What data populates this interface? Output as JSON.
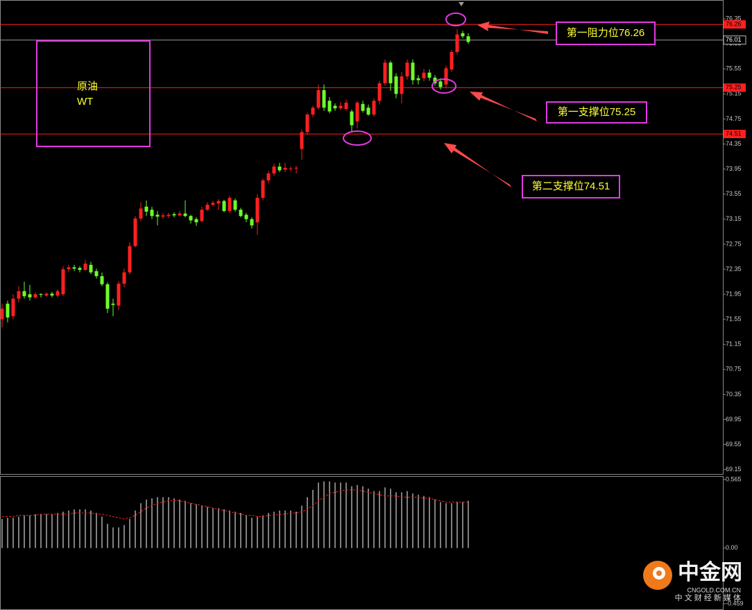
{
  "chart_data": [
    {
      "type": "candlestick",
      "ylim": [
        69.08,
        76.65
      ],
      "yticks": [
        76.35,
        75.95,
        75.55,
        75.15,
        74.75,
        74.35,
        73.95,
        73.55,
        73.15,
        72.75,
        72.35,
        71.95,
        71.55,
        71.15,
        70.75,
        70.35,
        69.95,
        69.55,
        69.15
      ],
      "up_color": "#ff2020",
      "down_color": "#6dff2a",
      "open": [
        71.55,
        71.8,
        71.6,
        71.88,
        72.0,
        71.95,
        71.9,
        71.95,
        71.93,
        71.96,
        71.93,
        71.95,
        72.35,
        72.38,
        72.37,
        72.34,
        72.42,
        72.32,
        72.24,
        72.11,
        71.8,
        71.77,
        72.12,
        72.3,
        72.72,
        73.16,
        73.35,
        73.3,
        73.22,
        73.19,
        73.2,
        73.23,
        73.21,
        73.24,
        73.2,
        73.15,
        73.12,
        73.3,
        73.38,
        73.4,
        73.44,
        73.28,
        73.45,
        73.3,
        73.22,
        73.15,
        73.1,
        73.49,
        73.77,
        73.88,
        73.99,
        73.94,
        73.95,
        73.96,
        74.27,
        74.54,
        74.82,
        74.93,
        75.21,
        75.04,
        74.96,
        74.92,
        74.91,
        74.87,
        74.71,
        74.99,
        74.93,
        74.82,
        75.04,
        75.32,
        75.65,
        75.43,
        75.15,
        75.43,
        75.65,
        75.4,
        75.4,
        75.49,
        75.41,
        75.35,
        75.3,
        75.54,
        75.82,
        76.12,
        76.07
      ],
      "high": [
        71.8,
        71.85,
        71.95,
        72.08,
        72.15,
        72.1,
        71.98,
        71.97,
        71.98,
        71.99,
        72.03,
        72.4,
        72.42,
        72.42,
        72.4,
        72.5,
        72.47,
        72.36,
        72.3,
        72.14,
        71.88,
        72.16,
        72.36,
        72.78,
        73.2,
        73.42,
        73.45,
        73.35,
        73.28,
        73.25,
        73.25,
        73.26,
        73.28,
        73.45,
        73.22,
        73.18,
        73.35,
        73.42,
        73.44,
        73.47,
        73.46,
        73.52,
        73.48,
        73.33,
        73.25,
        73.18,
        73.55,
        73.8,
        73.92,
        74.04,
        74.05,
        74.05,
        73.99,
        74.0,
        74.58,
        74.85,
        74.96,
        75.3,
        75.3,
        75.1,
        75.0,
        75.02,
        75.06,
        74.9,
        75.04,
        75.04,
        74.98,
        75.08,
        75.36,
        75.7,
        75.68,
        75.48,
        75.5,
        75.7,
        75.7,
        75.45,
        75.55,
        75.54,
        75.45,
        75.4,
        75.6,
        75.85,
        76.18,
        76.16,
        76.12
      ],
      "low": [
        71.42,
        71.5,
        71.55,
        71.82,
        71.88,
        71.85,
        71.88,
        71.9,
        71.91,
        71.9,
        71.9,
        71.92,
        72.3,
        72.32,
        72.3,
        72.32,
        72.27,
        72.2,
        72.08,
        71.65,
        71.6,
        71.7,
        72.06,
        72.27,
        72.7,
        73.12,
        73.2,
        73.15,
        73.05,
        73.15,
        73.17,
        73.18,
        73.19,
        73.18,
        73.08,
        73.04,
        73.1,
        73.28,
        73.35,
        73.3,
        73.26,
        73.25,
        73.27,
        73.18,
        73.1,
        73.0,
        72.9,
        73.45,
        73.72,
        73.84,
        73.9,
        73.9,
        73.92,
        73.88,
        74.1,
        74.5,
        74.78,
        74.9,
        74.88,
        74.84,
        74.88,
        74.89,
        74.88,
        74.55,
        74.6,
        74.85,
        74.8,
        74.79,
        74.98,
        75.28,
        75.2,
        75.08,
        75.0,
        75.38,
        75.3,
        75.3,
        75.35,
        75.36,
        75.28,
        75.22,
        75.24,
        75.5,
        75.78,
        76.04,
        75.95
      ],
      "close": [
        71.72,
        71.58,
        71.88,
        72.0,
        71.92,
        71.9,
        71.95,
        71.94,
        71.96,
        71.93,
        72.0,
        72.35,
        72.38,
        72.36,
        72.34,
        72.44,
        72.3,
        72.24,
        72.11,
        71.72,
        71.78,
        72.12,
        72.3,
        72.72,
        73.16,
        73.32,
        73.27,
        73.2,
        73.19,
        73.21,
        73.22,
        73.21,
        73.24,
        73.2,
        73.13,
        73.1,
        73.3,
        73.38,
        73.41,
        73.44,
        73.28,
        73.49,
        73.3,
        73.2,
        73.15,
        73.05,
        73.49,
        73.77,
        73.88,
        73.99,
        73.93,
        73.97,
        73.96,
        73.97,
        74.54,
        74.82,
        74.93,
        75.21,
        74.93,
        74.87,
        74.92,
        74.96,
        75.01,
        74.65,
        75.01,
        74.88,
        74.82,
        75.04,
        75.32,
        75.65,
        75.32,
        75.15,
        75.43,
        75.65,
        75.37,
        75.37,
        75.49,
        75.41,
        75.32,
        75.26,
        75.56,
        75.82,
        76.1,
        76.07,
        75.98
      ],
      "hlines": [
        {
          "value": 76.26,
          "color": "#ff2020"
        },
        {
          "value": 76.01,
          "color": "#9a9a9a"
        },
        {
          "value": 75.25,
          "color": "#ff2020"
        },
        {
          "value": 74.51,
          "color": "#ff2020"
        }
      ],
      "instrument": [
        "原油",
        "WT"
      ],
      "annotations": [
        "第一阻力位76.26",
        "第一支撑位75.25",
        "第二支撑位74.51"
      ]
    },
    {
      "type": "bar",
      "ylim": [
        -0.459,
        0.565
      ],
      "yticks": [
        0.565,
        {
          "value": 0,
          "label": "0.00"
        },
        -0.459
      ],
      "color": "#ffffff",
      "line_color": "#ff2020",
      "values": [
        0.24,
        0.25,
        0.25,
        0.26,
        0.27,
        0.27,
        0.28,
        0.28,
        0.28,
        0.28,
        0.29,
        0.3,
        0.31,
        0.32,
        0.32,
        0.32,
        0.31,
        0.29,
        0.26,
        0.2,
        0.17,
        0.17,
        0.19,
        0.24,
        0.31,
        0.37,
        0.4,
        0.41,
        0.42,
        0.42,
        0.42,
        0.41,
        0.4,
        0.39,
        0.37,
        0.36,
        0.35,
        0.34,
        0.33,
        0.33,
        0.32,
        0.31,
        0.3,
        0.29,
        0.27,
        0.25,
        0.26,
        0.27,
        0.29,
        0.3,
        0.31,
        0.31,
        0.31,
        0.3,
        0.35,
        0.42,
        0.48,
        0.54,
        0.55,
        0.55,
        0.54,
        0.54,
        0.54,
        0.51,
        0.52,
        0.51,
        0.49,
        0.47,
        0.47,
        0.5,
        0.49,
        0.46,
        0.46,
        0.47,
        0.45,
        0.44,
        0.43,
        0.42,
        0.4,
        0.38,
        0.37,
        0.37,
        0.38,
        0.38,
        0.39
      ],
      "line_values": [
        0.26,
        0.26,
        0.26,
        0.27,
        0.27,
        0.27,
        0.27,
        0.28,
        0.28,
        0.28,
        0.28,
        0.28,
        0.28,
        0.29,
        0.29,
        0.29,
        0.29,
        0.28,
        0.28,
        0.27,
        0.26,
        0.25,
        0.24,
        0.25,
        0.27,
        0.3,
        0.33,
        0.35,
        0.37,
        0.38,
        0.39,
        0.39,
        0.39,
        0.38,
        0.37,
        0.36,
        0.35,
        0.34,
        0.33,
        0.32,
        0.31,
        0.3,
        0.29,
        0.28,
        0.27,
        0.27,
        0.26,
        0.26,
        0.27,
        0.27,
        0.28,
        0.28,
        0.29,
        0.29,
        0.3,
        0.32,
        0.35,
        0.39,
        0.42,
        0.45,
        0.46,
        0.47,
        0.48,
        0.48,
        0.48,
        0.47,
        0.46,
        0.45,
        0.44,
        0.43,
        0.43,
        0.43,
        0.42,
        0.42,
        0.42,
        0.42,
        0.41,
        0.41,
        0.4,
        0.39,
        0.38,
        0.38,
        0.38,
        0.38,
        0.38
      ]
    }
  ],
  "logo": {
    "name": "中金网",
    "site": "CNGOLD.COM.CN",
    "slogan": "中 文 财 经 新 媒 体"
  }
}
